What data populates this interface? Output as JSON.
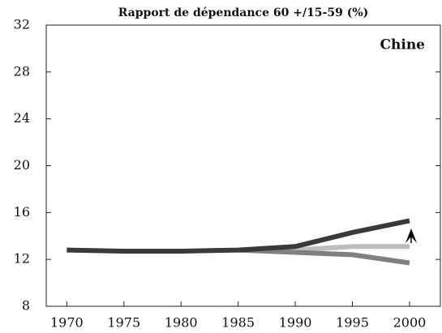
{
  "chart_data": {
    "type": "line",
    "title": "Rapport de dépendance 60 +/15-59 (%)",
    "annotation": "Chine",
    "x": [
      1970,
      1975,
      1980,
      1985,
      1990,
      1995,
      2000
    ],
    "series": [
      {
        "color": "#bdbdbd",
        "values": [
          null,
          null,
          null,
          12.8,
          12.8,
          13.1,
          13.1
        ]
      },
      {
        "color": "#808080",
        "values": [
          null,
          null,
          null,
          12.8,
          12.6,
          12.4,
          11.7
        ]
      },
      {
        "color": "#3a3a3a",
        "values": [
          12.8,
          12.7,
          12.7,
          12.8,
          13.1,
          14.3,
          15.3
        ]
      }
    ],
    "xlim": [
      1968.2,
      2002.7
    ],
    "xticks": [
      1970,
      1975,
      1980,
      1985,
      1990,
      1995,
      2000
    ],
    "ylim": [
      8,
      32
    ],
    "yticks": [
      8,
      12,
      16,
      20,
      24,
      28,
      32
    ],
    "grid": false
  }
}
